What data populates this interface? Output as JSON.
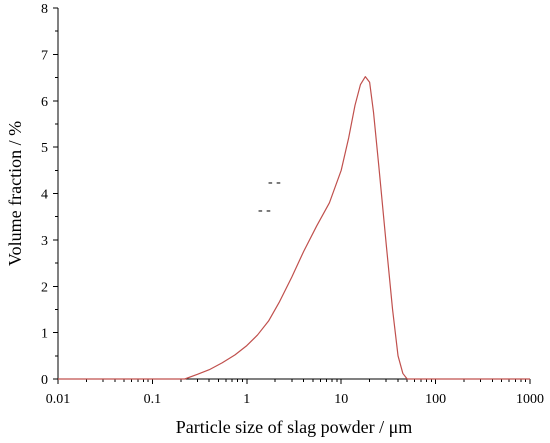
{
  "chart_data": {
    "type": "line",
    "title": "",
    "xlabel": "Particle size of slag powder / μm",
    "ylabel": "Volume fraction / %",
    "xscale": "log",
    "xlim": [
      0.01,
      1000
    ],
    "ylim": [
      0,
      8
    ],
    "grid": false,
    "legend": "none",
    "x_ticks": [
      0.01,
      0.1,
      1,
      10,
      100,
      1000
    ],
    "x_tick_labels": [
      "0.01",
      "0.1",
      "1",
      "10",
      "100",
      "1000"
    ],
    "y_ticks": [
      0,
      1,
      2,
      3,
      4,
      5,
      6,
      7,
      8
    ],
    "y_tick_labels": [
      "0",
      "1",
      "2",
      "3",
      "4",
      "5",
      "6",
      "7",
      "8"
    ],
    "series": [
      {
        "color": "#c0504d",
        "x": [
          0.01,
          0.22,
          0.3,
          0.4,
          0.55,
          0.75,
          1.0,
          1.3,
          1.7,
          2.2,
          3.0,
          4.0,
          5.5,
          7.5,
          10,
          12,
          14,
          16,
          18,
          20,
          22,
          25,
          30,
          35,
          40,
          45,
          50,
          1000
        ],
        "y": [
          0,
          0,
          0.1,
          0.2,
          0.35,
          0.52,
          0.72,
          0.95,
          1.25,
          1.65,
          2.2,
          2.75,
          3.3,
          3.8,
          4.5,
          5.2,
          5.9,
          6.35,
          6.52,
          6.4,
          5.75,
          4.6,
          2.9,
          1.5,
          0.5,
          0.12,
          0,
          0
        ]
      }
    ],
    "annotations": [
      "- -",
      "- -"
    ]
  }
}
